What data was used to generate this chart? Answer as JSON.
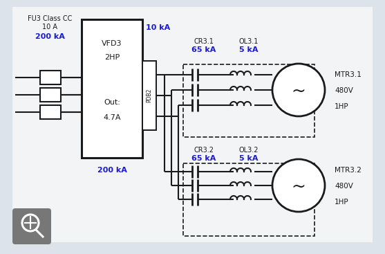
{
  "bg_color": "#dde3ea",
  "inner_bg": "#f2f4f6",
  "black": "#1a1a1a",
  "blue": "#1a1acc",
  "gray": "#888888",
  "fuse_label": "FU3 Class CC",
  "fuse_rating": "10 A",
  "fuse_sccr": "200 kA",
  "vfd_label1": "VFD3",
  "vfd_label2": "2HP",
  "vfd_label3": "Out:",
  "vfd_label4": "4.7A",
  "vfd_sccr": "200 kA",
  "pdb_label": "PDB2",
  "vfd_out_sccr": "10 kA",
  "cr31_label": "CR3.1",
  "cr31_sccr": "65 kA",
  "ol31_label": "OL3.1",
  "ol31_sccr": "5 kA",
  "mtr31_label": "MTR3.1",
  "mtr31_v": "480V",
  "mtr31_hp": "1HP",
  "cr32_label": "CR3.2",
  "cr32_sccr": "65 kA",
  "ol32_label": "OL3.2",
  "ol32_sccr": "5 kA",
  "mtr32_label": "MTR3.2",
  "mtr32_v": "480V",
  "mtr32_hp": "1HP",
  "zoom_icon_color": "#777777"
}
